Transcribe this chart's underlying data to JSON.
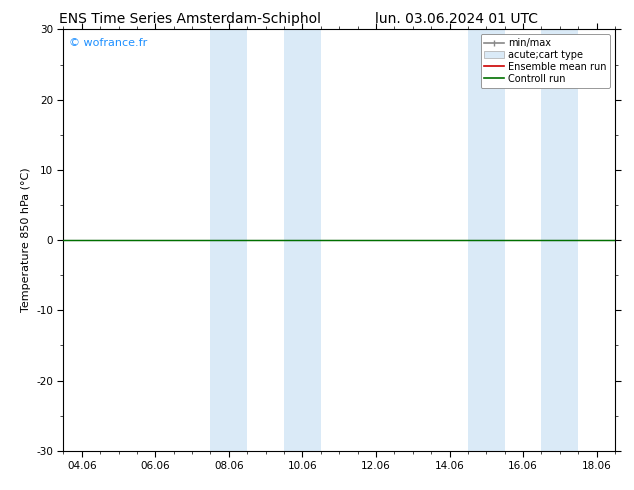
{
  "title_left": "ENS Time Series Amsterdam-Schiphol",
  "title_right": "lun. 03.06.2024 01 UTC",
  "ylabel": "Temperature 850 hPa (°C)",
  "ylim": [
    -30,
    30
  ],
  "yticks": [
    -30,
    -20,
    -10,
    0,
    10,
    20,
    30
  ],
  "xtick_labels": [
    "04.06",
    "06.06",
    "08.06",
    "10.06",
    "12.06",
    "14.06",
    "16.06",
    "18.06"
  ],
  "xtick_positions": [
    0,
    2,
    4,
    6,
    8,
    10,
    12,
    14
  ],
  "xmin": -0.5,
  "xmax": 14.5,
  "shaded_regions": [
    {
      "xmin": 3.5,
      "xmax": 4.5,
      "color": "#daeaf7"
    },
    {
      "xmin": 5.5,
      "xmax": 6.5,
      "color": "#daeaf7"
    },
    {
      "xmin": 10.5,
      "xmax": 11.5,
      "color": "#daeaf7"
    },
    {
      "xmin": 12.5,
      "xmax": 13.5,
      "color": "#daeaf7"
    }
  ],
  "hline_color": "black",
  "hline_lw": 0.8,
  "control_run_color": "#007000",
  "control_run_lw": 1.0,
  "ensemble_mean_color": "#cc0000",
  "watermark_text": "© wofrance.fr",
  "watermark_color": "#1e90ff",
  "watermark_fontsize": 8,
  "legend_labels": [
    "min/max",
    "acute;cart type",
    "Ensemble mean run",
    "Controll run"
  ],
  "minmax_color": "#888888",
  "shading_color": "#daeaf7",
  "background_color": "#ffffff",
  "title_fontsize": 10,
  "tick_label_fontsize": 7.5,
  "ylabel_fontsize": 8,
  "legend_fontsize": 7
}
